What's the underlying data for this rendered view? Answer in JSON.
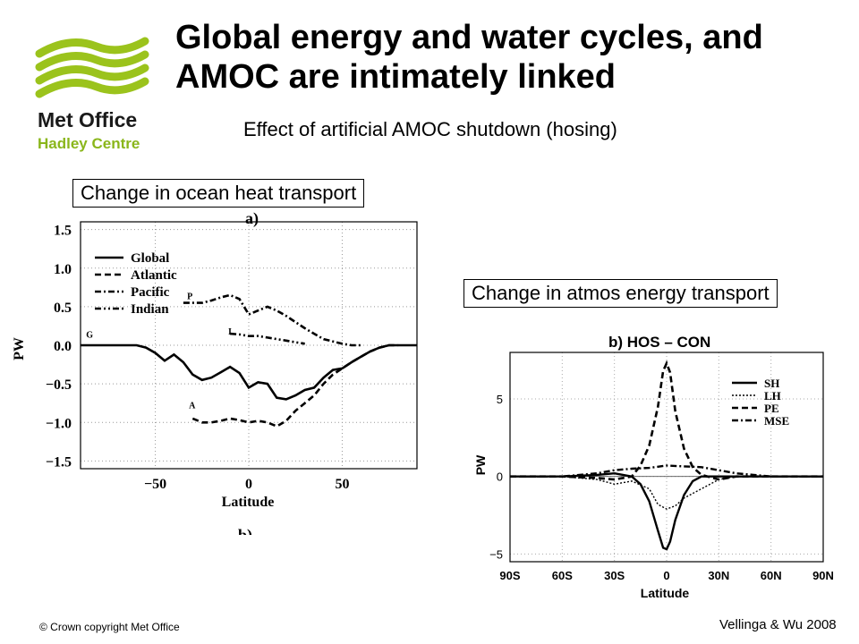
{
  "slide": {
    "title": "Global energy and water cycles, and AMOC are intimately linked",
    "subtitle": "Effect of artificial AMOC shutdown (hosing)",
    "ocean_label": "Change in ocean heat transport",
    "atmos_label": "Change in atmos energy transport",
    "copyright": "© Crown copyright   Met Office",
    "citation": "Vellinga & Wu 2008"
  },
  "logo": {
    "line1": "Met Office",
    "line2": "Hadley Centre",
    "color_green": "#9bc31c",
    "color_text": "#1a1a1a",
    "color_sub": "#8ab61b"
  },
  "chart_data": [
    {
      "type": "line",
      "panel_label": "a)",
      "cut_label": "b)",
      "xlabel": "Latitude",
      "ylabel": "PW",
      "xlim": [
        -90,
        90
      ],
      "ylim": [
        -1.6,
        1.6
      ],
      "xticks": [
        -50,
        0,
        50
      ],
      "xtick_labels": [
        "−50",
        "0",
        "50"
      ],
      "yticks": [
        1.5,
        1.0,
        0.5,
        0.0,
        -0.5,
        -1.0,
        -1.5
      ],
      "ytick_labels": [
        "1.5",
        "1.0",
        "0.5",
        "0.0",
        "−0.5",
        "−1.0",
        "−1.5"
      ],
      "grid": true,
      "legend": "top-left",
      "series": [
        {
          "name": "Global",
          "tag": "G",
          "style": "solid",
          "x": [
            -90,
            -80,
            -70,
            -60,
            -55,
            -50,
            -45,
            -40,
            -35,
            -30,
            -25,
            -20,
            -15,
            -10,
            -5,
            0,
            5,
            10,
            15,
            20,
            25,
            30,
            35,
            40,
            45,
            50,
            55,
            60,
            65,
            70,
            75,
            80,
            85,
            90
          ],
          "y": [
            0.0,
            0.0,
            0.0,
            0.0,
            -0.03,
            -0.1,
            -0.2,
            -0.12,
            -0.22,
            -0.38,
            -0.45,
            -0.42,
            -0.35,
            -0.28,
            -0.36,
            -0.55,
            -0.48,
            -0.5,
            -0.68,
            -0.7,
            -0.65,
            -0.58,
            -0.55,
            -0.42,
            -0.32,
            -0.3,
            -0.22,
            -0.15,
            -0.08,
            -0.03,
            0.0,
            0.0,
            0.0,
            0.0
          ]
        },
        {
          "name": "Atlantic",
          "tag": "A",
          "style": "dashed",
          "x": [
            -30,
            -25,
            -20,
            -15,
            -10,
            -5,
            0,
            5,
            10,
            15,
            20,
            25,
            30,
            35,
            40,
            45,
            50,
            55,
            60,
            65,
            70,
            75,
            80
          ],
          "y": [
            -0.95,
            -1.0,
            -1.0,
            -0.98,
            -0.95,
            -0.97,
            -1.0,
            -0.98,
            -1.0,
            -1.05,
            -0.98,
            -0.85,
            -0.75,
            -0.65,
            -0.5,
            -0.38,
            -0.3,
            -0.22,
            -0.15,
            -0.08,
            -0.03,
            0.0,
            0.0
          ]
        },
        {
          "name": "Pacific",
          "tag": "P",
          "style": "dash-dot",
          "x": [
            -35,
            -30,
            -25,
            -20,
            -15,
            -10,
            -5,
            0,
            5,
            10,
            15,
            20,
            25,
            30,
            35,
            40,
            45,
            50,
            55,
            60
          ],
          "y": [
            0.55,
            0.55,
            0.55,
            0.58,
            0.62,
            0.65,
            0.6,
            0.4,
            0.45,
            0.5,
            0.45,
            0.38,
            0.3,
            0.22,
            0.15,
            0.08,
            0.05,
            0.02,
            0.0,
            0.0
          ]
        },
        {
          "name": "Indian",
          "tag": "I",
          "style": "dash-dot-dot",
          "x": [
            -10,
            -5,
            0,
            5,
            10,
            15,
            20,
            25,
            30
          ],
          "y": [
            0.15,
            0.14,
            0.12,
            0.12,
            0.1,
            0.08,
            0.06,
            0.04,
            0.02
          ]
        }
      ]
    },
    {
      "type": "line",
      "title": "b) HOS – CON",
      "xlabel": "Latitude",
      "ylabel": "PW",
      "xlim": [
        -90,
        90
      ],
      "ylim": [
        -5.5,
        8
      ],
      "xticks": [
        -90,
        -60,
        -30,
        0,
        30,
        60,
        90
      ],
      "xtick_labels": [
        "90S",
        "60S",
        "30S",
        "0",
        "30N",
        "60N",
        "90N"
      ],
      "yticks": [
        5,
        0,
        -5
      ],
      "ytick_labels": [
        "5",
        "0",
        "−5"
      ],
      "grid": true,
      "legend": "top-right",
      "series": [
        {
          "name": "SH",
          "style": "solid",
          "x": [
            -90,
            -60,
            -40,
            -30,
            -20,
            -15,
            -10,
            -5,
            -2,
            0,
            2,
            5,
            10,
            15,
            20,
            30,
            40,
            60,
            90
          ],
          "y": [
            0,
            0,
            0.1,
            0.2,
            0,
            -0.5,
            -1.6,
            -3.5,
            -4.6,
            -4.7,
            -4.2,
            -2.8,
            -1.2,
            -0.3,
            0,
            0,
            0,
            0,
            0
          ]
        },
        {
          "name": "LH",
          "style": "dotted",
          "x": [
            -90,
            -60,
            -40,
            -30,
            -20,
            -10,
            -5,
            0,
            5,
            10,
            20,
            30,
            40,
            60,
            90
          ],
          "y": [
            0,
            0,
            -0.2,
            -0.5,
            -0.3,
            -0.8,
            -1.8,
            -2.1,
            -1.9,
            -1.4,
            -0.8,
            -0.2,
            0,
            0,
            0
          ]
        },
        {
          "name": "PE",
          "style": "dashed",
          "x": [
            -90,
            -60,
            -40,
            -30,
            -20,
            -15,
            -10,
            -5,
            -2,
            0,
            2,
            5,
            10,
            15,
            20,
            30,
            40,
            60,
            90
          ],
          "y": [
            0,
            0,
            -0.1,
            -0.2,
            0,
            0.7,
            2.0,
            4.5,
            6.8,
            7.3,
            6.7,
            4.2,
            1.8,
            0.6,
            0.1,
            -0.2,
            0,
            0,
            0
          ]
        },
        {
          "name": "MSE",
          "style": "dash-dot",
          "x": [
            -90,
            -60,
            -40,
            -30,
            -20,
            -10,
            0,
            10,
            20,
            30,
            40,
            50,
            60,
            90
          ],
          "y": [
            0,
            0,
            0.2,
            0.4,
            0.5,
            0.55,
            0.7,
            0.65,
            0.6,
            0.4,
            0.2,
            0.1,
            0,
            0
          ]
        }
      ]
    }
  ]
}
